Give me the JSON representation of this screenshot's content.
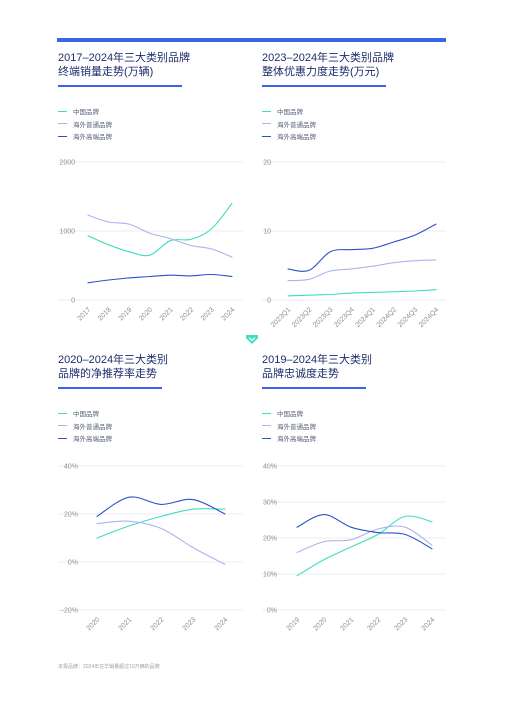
{
  "colors": {
    "accent": "#3a64e6",
    "series": [
      "#3fdcc0",
      "#aab4f0",
      "#2a52c9"
    ]
  },
  "legend": [
    "中国品牌",
    "海外普通品牌",
    "海外高端品牌"
  ],
  "footer": "本报品牌：2024年在华销量超过10万辆的品牌",
  "panels": [
    {
      "title1": "2017–2024年三大类别品牌",
      "title2": "终端销量走势(万辆)"
    },
    {
      "title1": "2023–2024年三大类别品牌",
      "title2": "整体优惠力度走势(万元)"
    },
    {
      "title1": "2020–2024年三大类别",
      "title2": "品牌的净推荐率走势"
    },
    {
      "title1": "2019–2024年三大类别",
      "title2": "品牌忠诚度走势"
    }
  ],
  "chart_data": [
    {
      "type": "line",
      "categories": [
        "2017",
        "2018",
        "2019",
        "2020",
        "2021",
        "2022",
        "2023",
        "2024"
      ],
      "ylim": [
        0,
        2000
      ],
      "yticks": [
        "2000",
        "1000",
        "0"
      ],
      "series": [
        {
          "name": "中国品牌",
          "values": [
            930,
            800,
            700,
            650,
            860,
            880,
            1030,
            1400
          ]
        },
        {
          "name": "海外普通品牌",
          "values": [
            1230,
            1130,
            1100,
            970,
            890,
            790,
            740,
            620
          ]
        },
        {
          "name": "海外高端品牌",
          "values": [
            250,
            290,
            320,
            340,
            360,
            350,
            370,
            340
          ]
        }
      ]
    },
    {
      "type": "line",
      "categories": [
        "2023Q1",
        "2023Q2",
        "2023Q3",
        "2023Q4",
        "2024Q1",
        "2024Q2",
        "2024Q3",
        "2024Q4"
      ],
      "ylim": [
        0,
        20
      ],
      "yticks": [
        "20",
        "10",
        "0"
      ],
      "series": [
        {
          "name": "中国品牌",
          "values": [
            0.6,
            0.7,
            0.8,
            1.0,
            1.1,
            1.2,
            1.3,
            1.5
          ]
        },
        {
          "name": "海外普通品牌",
          "values": [
            2.8,
            3.0,
            4.2,
            4.5,
            4.9,
            5.4,
            5.7,
            5.8
          ]
        },
        {
          "name": "海外高端品牌",
          "values": [
            4.5,
            4.3,
            7.0,
            7.3,
            7.5,
            8.4,
            9.4,
            11.0
          ]
        }
      ]
    },
    {
      "type": "line",
      "categories": [
        "2020",
        "2021",
        "2022",
        "2023",
        "2024"
      ],
      "ylim": [
        -20,
        40
      ],
      "yticks": [
        "40%",
        "20%",
        "0%",
        "−20%"
      ],
      "series": [
        {
          "name": "中国品牌",
          "values": [
            10,
            15,
            19,
            22,
            22
          ]
        },
        {
          "name": "海外普通品牌",
          "values": [
            16,
            17,
            14,
            6,
            -1
          ]
        },
        {
          "name": "海外高端品牌",
          "values": [
            19,
            27,
            24,
            26,
            20
          ]
        }
      ]
    },
    {
      "type": "line",
      "categories": [
        "2019",
        "2020",
        "2021",
        "2022",
        "2023",
        "2024"
      ],
      "ylim": [
        0,
        40
      ],
      "yticks": [
        "40%",
        "30%",
        "20%",
        "10%",
        "0%"
      ],
      "series": [
        {
          "name": "中国品牌",
          "values": [
            9.5,
            14,
            17.5,
            21,
            26,
            24.5
          ]
        },
        {
          "name": "海外普通品牌",
          "values": [
            16,
            19,
            19.5,
            22.5,
            23,
            18
          ]
        },
        {
          "name": "海外高端品牌",
          "values": [
            23,
            26.5,
            23,
            21.5,
            21,
            17
          ]
        }
      ]
    }
  ]
}
